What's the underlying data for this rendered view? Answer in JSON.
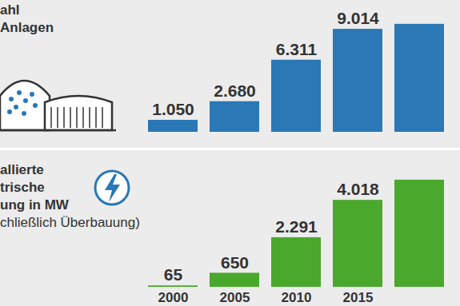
{
  "chart_data": [
    {
      "type": "bar",
      "title": "ahl\nAnlagen",
      "categories": [
        "2000",
        "2005",
        "2010",
        "2015",
        null
      ],
      "values": [
        1050,
        2680,
        6311,
        9014,
        9450
      ],
      "value_labels": [
        "1.050",
        "2.680",
        "6.311",
        "9.014",
        null
      ],
      "color": "#2a78b5",
      "ylim": [
        0,
        10000
      ],
      "data_labels": true,
      "tick_labels": false,
      "grid": false
    },
    {
      "type": "bar",
      "title": "allierte\ntrische\nung in MW\nchließlich Überbauung)",
      "categories": [
        "2000",
        "2005",
        "2010",
        "2015",
        null
      ],
      "values": [
        65,
        650,
        2291,
        4018,
        4950
      ],
      "value_labels": [
        "65",
        "650",
        "2.291",
        "4.018",
        null
      ],
      "color": "#4aa82c",
      "ylim": [
        0,
        5500
      ],
      "data_labels": true,
      "tick_labels": "x",
      "grid": false
    }
  ]
}
